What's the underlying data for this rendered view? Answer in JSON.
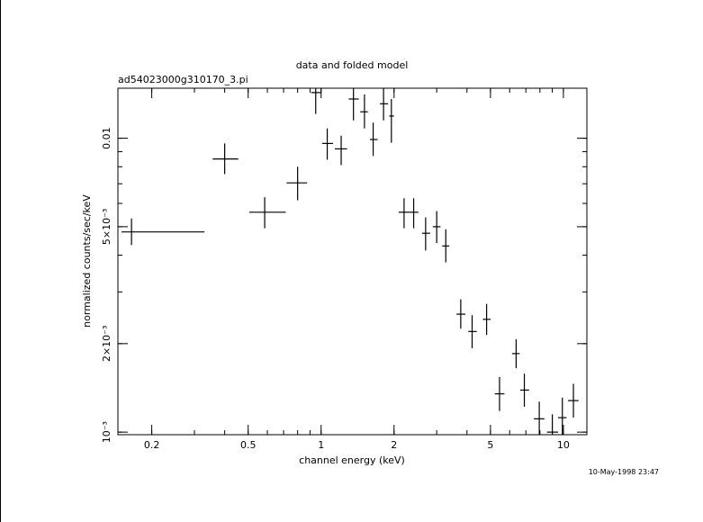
{
  "chart_data": {
    "type": "scatter",
    "title": "data and folded model",
    "subtitle": "ad54023000g310170_3.pi",
    "xlabel": "channel energy (keV)",
    "ylabel": "normalized counts/sec/keV",
    "timestamp": "10-May-1998 23:47",
    "x_scale": "log",
    "y_scale": "log",
    "xlim": [
      0.145,
      12.5
    ],
    "ylim": [
      0.00098,
      0.0148
    ],
    "grid": false,
    "x_ticks": [
      {
        "value": 0.2,
        "label": "0.2"
      },
      {
        "value": 0.5,
        "label": "0.5"
      },
      {
        "value": 1,
        "label": "1"
      },
      {
        "value": 2,
        "label": "2"
      },
      {
        "value": 5,
        "label": "5"
      },
      {
        "value": 10,
        "label": "10"
      }
    ],
    "y_ticks": [
      {
        "value": 0.001,
        "label": "10⁻³"
      },
      {
        "value": 0.002,
        "label": "2×10⁻³"
      },
      {
        "value": 0.005,
        "label": "5×10⁻³"
      },
      {
        "value": 0.01,
        "label": "0.01"
      }
    ],
    "series": [
      {
        "points": [
          {
            "x": 0.165,
            "xerr": [
              0.15,
              0.33
            ],
            "y": 0.0048,
            "yerr": [
              0.00433,
              0.00533
            ]
          },
          {
            "x": 0.4,
            "xerr": [
              0.357,
              0.455
            ],
            "y": 0.0085,
            "yerr": [
              0.00755,
              0.0096
            ]
          },
          {
            "x": 0.585,
            "xerr": [
              0.505,
              0.715
            ],
            "y": 0.0056,
            "yerr": [
              0.00494,
              0.0063
            ]
          },
          {
            "x": 0.8,
            "xerr": [
              0.72,
              0.875
            ],
            "y": 0.00705,
            "yerr": [
              0.00615,
              0.008
            ]
          },
          {
            "x": 0.95,
            "xerr": [
              0.91,
              1.0
            ],
            "y": 0.0143,
            "yerr": [
              0.0121,
              0.0148
            ]
          },
          {
            "x": 1.06,
            "xerr": [
              1.01,
              1.12
            ],
            "y": 0.0096,
            "yerr": [
              0.00845,
              0.0108
            ]
          },
          {
            "x": 1.21,
            "xerr": [
              1.14,
              1.28
            ],
            "y": 0.0092,
            "yerr": [
              0.0081,
              0.0102
            ]
          },
          {
            "x": 1.36,
            "xerr": [
              1.3,
              1.43
            ],
            "y": 0.0136,
            "yerr": [
              0.0115,
              0.0148
            ]
          },
          {
            "x": 1.51,
            "xerr": [
              1.45,
              1.56
            ],
            "y": 0.0123,
            "yerr": [
              0.0108,
              0.0141
            ]
          },
          {
            "x": 1.64,
            "xerr": [
              1.59,
              1.71
            ],
            "y": 0.0099,
            "yerr": [
              0.0087,
              0.0113
            ]
          },
          {
            "x": 1.81,
            "xerr": [
              1.75,
              1.89
            ],
            "y": 0.0131,
            "yerr": [
              0.0115,
              0.0148
            ]
          },
          {
            "x": 1.95,
            "xerr": [
              1.91,
              2.0
            ],
            "y": 0.0119,
            "yerr": [
              0.00965,
              0.0136
            ]
          },
          {
            "x": 2.2,
            "xerr": [
              2.09,
              2.31
            ],
            "y": 0.0056,
            "yerr": [
              0.00494,
              0.00625
            ]
          },
          {
            "x": 2.41,
            "xerr": [
              2.31,
              2.52
            ],
            "y": 0.0056,
            "yerr": [
              0.00494,
              0.00625
            ]
          },
          {
            "x": 2.7,
            "xerr": [
              2.61,
              2.82
            ],
            "y": 0.00475,
            "yerr": [
              0.00415,
              0.00538
            ]
          },
          {
            "x": 3.0,
            "xerr": [
              2.89,
              3.11
            ],
            "y": 0.005,
            "yerr": [
              0.0044,
              0.00565
            ]
          },
          {
            "x": 3.27,
            "xerr": [
              3.16,
              3.38
            ],
            "y": 0.0043,
            "yerr": [
              0.00378,
              0.0049
            ]
          },
          {
            "x": 3.77,
            "xerr": [
              3.62,
              3.94
            ],
            "y": 0.00252,
            "yerr": [
              0.00225,
              0.00283
            ]
          },
          {
            "x": 4.2,
            "xerr": [
              4.05,
              4.39
            ],
            "y": 0.0022,
            "yerr": [
              0.00193,
              0.0025
            ]
          },
          {
            "x": 4.82,
            "xerr": [
              4.65,
              5.01
            ],
            "y": 0.00242,
            "yerr": [
              0.00214,
              0.00273
            ]
          },
          {
            "x": 5.45,
            "xerr": [
              5.21,
              5.71
            ],
            "y": 0.00135,
            "yerr": [
              0.00118,
              0.00154
            ]
          },
          {
            "x": 6.38,
            "xerr": [
              6.14,
              6.6
            ],
            "y": 0.00185,
            "yerr": [
              0.00165,
              0.00207
            ]
          },
          {
            "x": 6.9,
            "xerr": [
              6.64,
              7.22
            ],
            "y": 0.00139,
            "yerr": [
              0.00122,
              0.00158
            ]
          },
          {
            "x": 7.95,
            "xerr": [
              7.55,
              8.35
            ],
            "y": 0.00111,
            "yerr": [
              0.00098,
              0.00127
            ]
          },
          {
            "x": 9.0,
            "xerr": [
              8.55,
              9.51
            ],
            "y": 0.001,
            "yerr": [
              0.00098,
              0.00115
            ]
          },
          {
            "x": 9.9,
            "xerr": [
              9.51,
              10.3
            ],
            "y": 0.00112,
            "yerr": [
              0.00098,
              0.00131
            ]
          },
          {
            "x": 11.0,
            "xerr": [
              10.45,
              11.55
            ],
            "y": 0.00128,
            "yerr": [
              0.00112,
              0.00146
            ]
          }
        ]
      }
    ]
  }
}
